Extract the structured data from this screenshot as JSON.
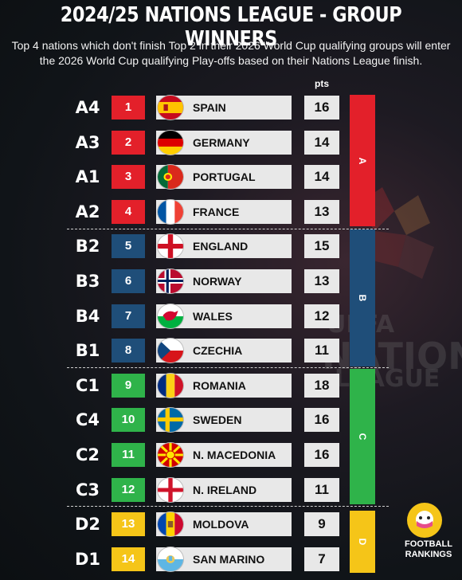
{
  "title": "2024/25 NATIONS LEAGUE - GROUP WINNERS",
  "subtitle": "Top 4 nations which don't finish Top 2 in their 2026 World Cup qualifying groups will enter the 2026 World Cup qualifying Play-offs based on their Nations League finish.",
  "pts_header": "pts",
  "colors": {
    "A": "#e3202a",
    "B": "#1f4e79",
    "C": "#2fb34a",
    "D": "#f5c518"
  },
  "rows": [
    {
      "seed": "A4",
      "rank": "1",
      "nation": "SPAIN",
      "pts": "16",
      "league": "A",
      "flag": "spain-flag-icon"
    },
    {
      "seed": "A3",
      "rank": "2",
      "nation": "GERMANY",
      "pts": "14",
      "league": "A",
      "flag": "germany-flag-icon"
    },
    {
      "seed": "A1",
      "rank": "3",
      "nation": "PORTUGAL",
      "pts": "14",
      "league": "A",
      "flag": "portugal-flag-icon"
    },
    {
      "seed": "A2",
      "rank": "4",
      "nation": "FRANCE",
      "pts": "13",
      "league": "A",
      "flag": "france-flag-icon"
    },
    {
      "seed": "B2",
      "rank": "5",
      "nation": "ENGLAND",
      "pts": "15",
      "league": "B",
      "flag": "england-flag-icon"
    },
    {
      "seed": "B3",
      "rank": "6",
      "nation": "NORWAY",
      "pts": "13",
      "league": "B",
      "flag": "norway-flag-icon"
    },
    {
      "seed": "B4",
      "rank": "7",
      "nation": "WALES",
      "pts": "12",
      "league": "B",
      "flag": "wales-flag-icon"
    },
    {
      "seed": "B1",
      "rank": "8",
      "nation": "CZECHIA",
      "pts": "11",
      "league": "B",
      "flag": "czechia-flag-icon"
    },
    {
      "seed": "C1",
      "rank": "9",
      "nation": "ROMANIA",
      "pts": "18",
      "league": "C",
      "flag": "romania-flag-icon"
    },
    {
      "seed": "C4",
      "rank": "10",
      "nation": "SWEDEN",
      "pts": "16",
      "league": "C",
      "flag": "sweden-flag-icon"
    },
    {
      "seed": "C2",
      "rank": "11",
      "nation": "N. MACEDONIA",
      "pts": "16",
      "league": "C",
      "flag": "north-macedonia-flag-icon"
    },
    {
      "seed": "C3",
      "rank": "12",
      "nation": "N. IRELAND",
      "pts": "11",
      "league": "C",
      "flag": "northern-ireland-flag-icon"
    },
    {
      "seed": "D2",
      "rank": "13",
      "nation": "MOLDOVA",
      "pts": "9",
      "league": "D",
      "flag": "moldova-flag-icon"
    },
    {
      "seed": "D1",
      "rank": "14",
      "nation": "SAN MARINO",
      "pts": "7",
      "league": "D",
      "flag": "san-marino-flag-icon"
    }
  ],
  "leagues": [
    {
      "label": "A"
    },
    {
      "label": "B"
    },
    {
      "label": "C"
    },
    {
      "label": "D"
    }
  ],
  "watermark": [
    "UEFA",
    "NATIONS",
    "LEAGUE"
  ],
  "brand": {
    "line1": "FOOTBALL",
    "line2": "RANKINGS"
  }
}
